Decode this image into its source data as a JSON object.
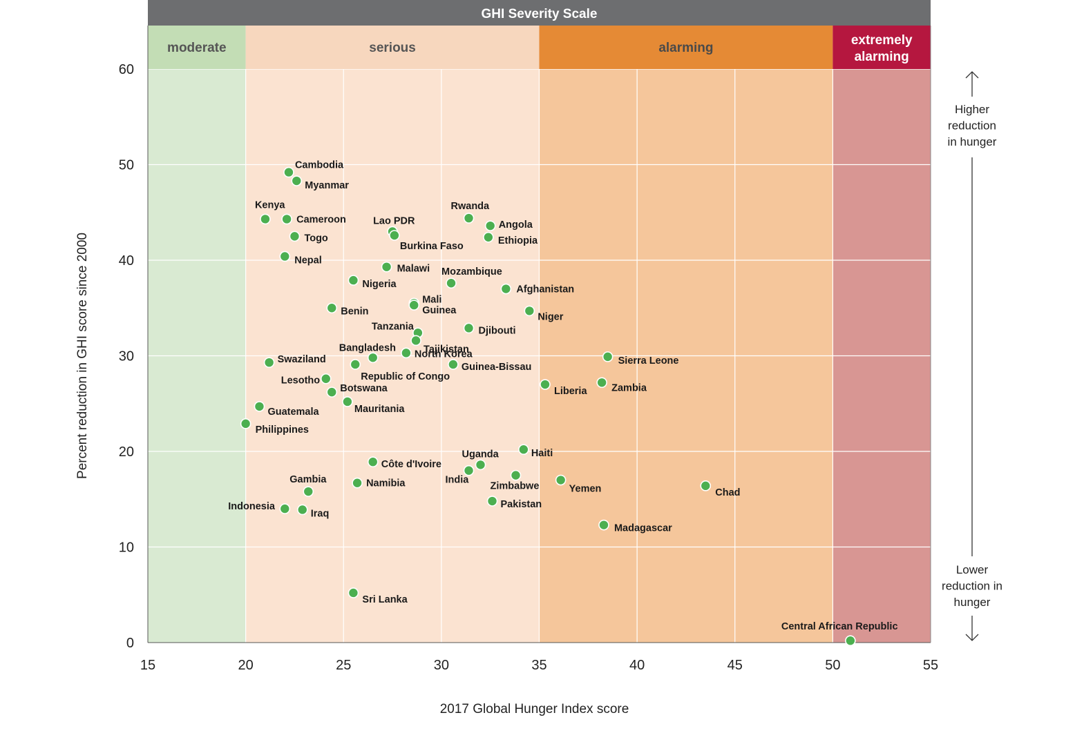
{
  "chart_data": {
    "type": "scatter",
    "title": "GHI Severity Scale",
    "xlabel": "2017 Global Hunger Index score",
    "ylabel": "Percent reduction in GHI score since 2000",
    "xlim": [
      15,
      55
    ],
    "ylim": [
      0,
      60
    ],
    "x_ticks": [
      15,
      20,
      25,
      30,
      35,
      40,
      45,
      50,
      55
    ],
    "y_ticks": [
      0,
      10,
      20,
      30,
      40,
      50,
      60
    ],
    "grid": true,
    "bands": [
      {
        "label": "moderate",
        "from": 15,
        "to": 20,
        "header_color": "#c3ddb5",
        "fill_color": "#d9ead2",
        "text_color": "#555555"
      },
      {
        "label": "serious",
        "from": 20,
        "to": 35,
        "header_color": "#f7d7be",
        "fill_color": "#fbe3d1",
        "text_color": "#555555"
      },
      {
        "label": "alarming",
        "from": 35,
        "to": 50,
        "header_color": "#e58a35",
        "fill_color": "#f5c69b",
        "text_color": "#4a4a4a"
      },
      {
        "label": "extremely alarming",
        "lines": [
          "extremely",
          "alarming"
        ],
        "from": 50,
        "to": 55,
        "header_color": "#b5173f",
        "fill_color": "#d89693",
        "text_color": "#ffffff"
      }
    ],
    "side_notes": {
      "top": [
        "Higher",
        "reduction",
        "in hunger"
      ],
      "bottom": [
        "Lower",
        "reduction in",
        "hunger"
      ]
    },
    "point_color": "#4caf50",
    "points": [
      {
        "label": "Cambodia",
        "x": 22.2,
        "y": 49.2
      },
      {
        "label": "Myanmar",
        "x": 22.6,
        "y": 48.3
      },
      {
        "label": "Kenya",
        "x": 21.0,
        "y": 44.3
      },
      {
        "label": "Cameroon",
        "x": 22.1,
        "y": 44.3
      },
      {
        "label": "Togo",
        "x": 22.5,
        "y": 42.5
      },
      {
        "label": "Nepal",
        "x": 22.0,
        "y": 40.4
      },
      {
        "label": "Lao PDR",
        "x": 27.5,
        "y": 43.0
      },
      {
        "label": "Burkina Faso",
        "x": 27.6,
        "y": 42.6
      },
      {
        "label": "Rwanda",
        "x": 31.4,
        "y": 44.4
      },
      {
        "label": "Angola",
        "x": 32.5,
        "y": 43.6
      },
      {
        "label": "Ethiopia",
        "x": 32.4,
        "y": 42.4
      },
      {
        "label": "Malawi",
        "x": 27.2,
        "y": 39.3
      },
      {
        "label": "Nigeria",
        "x": 25.5,
        "y": 37.9
      },
      {
        "label": "Mozambique",
        "x": 30.5,
        "y": 37.6
      },
      {
        "label": "Afghanistan",
        "x": 33.3,
        "y": 37.0
      },
      {
        "label": "Benin",
        "x": 24.4,
        "y": 35.0
      },
      {
        "label": "Mali",
        "x": 28.6,
        "y": 35.5
      },
      {
        "label": "Guinea",
        "x": 28.6,
        "y": 35.3
      },
      {
        "label": "Niger",
        "x": 34.5,
        "y": 34.7
      },
      {
        "label": "Djibouti",
        "x": 31.4,
        "y": 32.9
      },
      {
        "label": "Tanzania",
        "x": 28.8,
        "y": 32.4
      },
      {
        "label": "Tajikistan",
        "x": 28.7,
        "y": 31.6
      },
      {
        "label": "North Korea",
        "x": 28.2,
        "y": 30.3
      },
      {
        "label": "Bangladesh",
        "x": 26.5,
        "y": 29.8
      },
      {
        "label": "Republic of Congo",
        "x": 25.6,
        "y": 29.1
      },
      {
        "label": "Guinea-Bissau",
        "x": 30.6,
        "y": 29.1
      },
      {
        "label": "Swaziland",
        "x": 21.2,
        "y": 29.3
      },
      {
        "label": "Lesotho",
        "x": 24.1,
        "y": 27.6
      },
      {
        "label": "Botswana",
        "x": 24.4,
        "y": 26.2
      },
      {
        "label": "Mauritania",
        "x": 25.2,
        "y": 25.2
      },
      {
        "label": "Guatemala",
        "x": 20.7,
        "y": 24.7
      },
      {
        "label": "Philippines",
        "x": 20.0,
        "y": 22.9
      },
      {
        "label": "Sierra Leone",
        "x": 38.5,
        "y": 29.9
      },
      {
        "label": "Liberia",
        "x": 35.3,
        "y": 27.0
      },
      {
        "label": "Zambia",
        "x": 38.2,
        "y": 27.2
      },
      {
        "label": "Côte d'Ivoire",
        "x": 26.5,
        "y": 18.9
      },
      {
        "label": "Uganda",
        "x": 32.0,
        "y": 18.6
      },
      {
        "label": "India",
        "x": 31.4,
        "y": 18.0
      },
      {
        "label": "Haiti",
        "x": 34.2,
        "y": 20.2
      },
      {
        "label": "Zimbabwe",
        "x": 33.8,
        "y": 17.5
      },
      {
        "label": "Yemen",
        "x": 36.1,
        "y": 17.0
      },
      {
        "label": "Namibia",
        "x": 25.7,
        "y": 16.7
      },
      {
        "label": "Gambia",
        "x": 23.2,
        "y": 15.8
      },
      {
        "label": "Pakistan",
        "x": 32.6,
        "y": 14.8
      },
      {
        "label": "Indonesia",
        "x": 22.0,
        "y": 14.0
      },
      {
        "label": "Iraq",
        "x": 22.9,
        "y": 13.9
      },
      {
        "label": "Chad",
        "x": 43.5,
        "y": 16.4
      },
      {
        "label": "Madagascar",
        "x": 38.3,
        "y": 12.3
      },
      {
        "label": "Sri Lanka",
        "x": 25.5,
        "y": 5.2
      },
      {
        "label": "Central African Republic",
        "x": 50.9,
        "y": 0.2
      }
    ]
  }
}
